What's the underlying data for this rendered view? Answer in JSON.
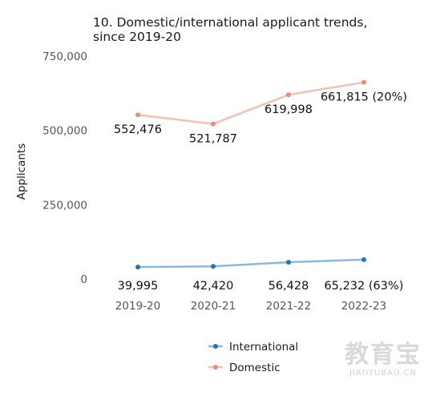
{
  "chart_data": {
    "type": "line",
    "title_line1": "10. Domestic/international applicant trends,",
    "title_line2": "since 2019-20",
    "ylabel": "Applicants",
    "xlabel": "",
    "categories": [
      "2019-20",
      "2020-21",
      "2021-22",
      "2022-23"
    ],
    "ylim": [
      0,
      750000
    ],
    "yticks": [
      0,
      250000,
      500000,
      750000
    ],
    "ytick_labels": [
      "0",
      "250,000",
      "500,000",
      "750,000"
    ],
    "grid": false,
    "legend_position": "bottom",
    "series": [
      {
        "name": "International",
        "color": "#1f77b4",
        "line_color": "#8ab8e0",
        "values": [
          39995,
          42420,
          56428,
          65232
        ],
        "labels": [
          "39,995",
          "42,420",
          "56,428",
          "65,232 (63%)"
        ]
      },
      {
        "name": "Domestic",
        "color": "#f08a78",
        "line_color": "#f6bfb3",
        "values": [
          552476,
          521787,
          619998,
          661815
        ],
        "labels": [
          "552,476",
          "521,787",
          "619,998",
          "661,815 (20%)"
        ]
      }
    ]
  },
  "watermark": {
    "logo_text": "教育宝",
    "url_text": "JIAOYUBAO.CN"
  }
}
